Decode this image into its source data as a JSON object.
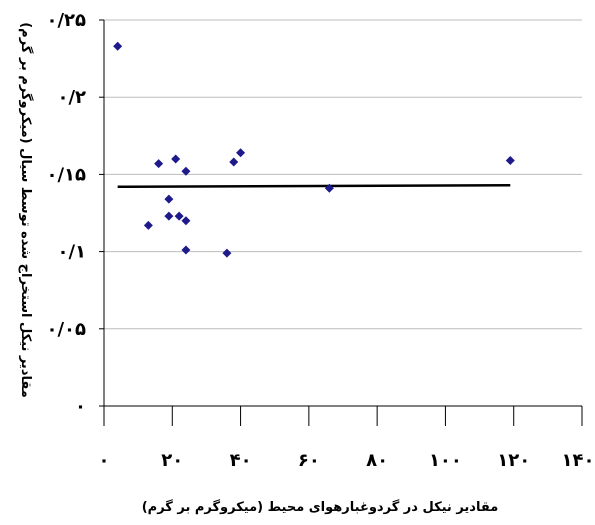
{
  "chart_data": {
    "type": "scatter",
    "xlabel": "مقادیر نیکل در گردوغبارهوای محیط (میکروگرم بر گرم)",
    "ylabel": "مقادیر نیکل استخراج شده توسط سیال (میکروگرم بر گرم)",
    "xlim": [
      0,
      140
    ],
    "ylim": [
      0,
      0.25
    ],
    "grid": true,
    "legend": "none",
    "x_ticks": [
      0,
      20,
      40,
      60,
      80,
      100,
      120,
      140
    ],
    "x_tick_labels": [
      "۰",
      "۲۰",
      "۴۰",
      "۶۰",
      "۸۰",
      "۱۰۰",
      "۱۲۰",
      "۱۴۰"
    ],
    "y_ticks": [
      0,
      0.05,
      0.1,
      0.15,
      0.2,
      0.25
    ],
    "y_tick_labels": [
      "۰",
      "۰/۰۵",
      "۰/۱",
      "۰/۱۵",
      "۰/۲",
      "۰/۲۵"
    ],
    "marker_color": "#1f1a8c",
    "line_color": "#000000",
    "grid_color": "#bdbdbd",
    "series": [
      {
        "type": "scatter",
        "points": [
          {
            "x": 4,
            "y": 0.233
          },
          {
            "x": 13,
            "y": 0.117
          },
          {
            "x": 16,
            "y": 0.157
          },
          {
            "x": 19,
            "y": 0.134
          },
          {
            "x": 19,
            "y": 0.123
          },
          {
            "x": 21,
            "y": 0.16
          },
          {
            "x": 22,
            "y": 0.123
          },
          {
            "x": 24,
            "y": 0.152
          },
          {
            "x": 24,
            "y": 0.12
          },
          {
            "x": 24,
            "y": 0.101
          },
          {
            "x": 36,
            "y": 0.099
          },
          {
            "x": 38,
            "y": 0.158
          },
          {
            "x": 40,
            "y": 0.164
          },
          {
            "x": 66,
            "y": 0.141
          },
          {
            "x": 119,
            "y": 0.159
          }
        ]
      },
      {
        "type": "line",
        "points": [
          {
            "x": 4,
            "y": 0.142
          },
          {
            "x": 119,
            "y": 0.143
          }
        ]
      }
    ]
  }
}
